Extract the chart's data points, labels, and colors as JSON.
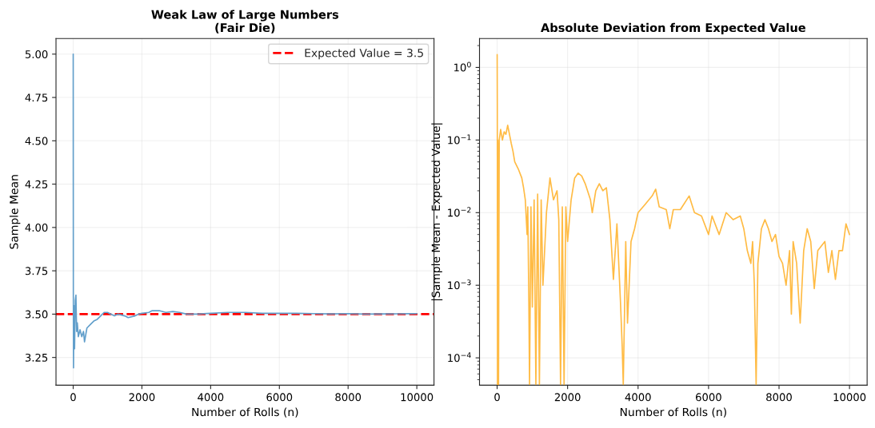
{
  "chart_data": [
    {
      "type": "line",
      "title": "Weak Law of Large Numbers\n(Fair Die)",
      "xlabel": "Number of Rolls (n)",
      "ylabel": "Sample Mean",
      "x": [
        1,
        5,
        10,
        20,
        40,
        60,
        80,
        100,
        120,
        150,
        200,
        250,
        300,
        330,
        400,
        500,
        600,
        700,
        800,
        900,
        1000,
        1100,
        1200,
        1300,
        1500,
        1600,
        1800,
        1900,
        2000,
        2200,
        2300,
        2500,
        2700,
        2900,
        3100,
        3300,
        3600,
        4000,
        4500,
        5000,
        5500,
        6000,
        6500,
        7000,
        7500,
        8000,
        8500,
        9000,
        9500,
        10000
      ],
      "series": [
        {
          "color": "#629fcb",
          "values": [
            5.0,
            3.6,
            3.19,
            3.55,
            3.3,
            3.58,
            3.61,
            3.4,
            3.45,
            3.37,
            3.41,
            3.37,
            3.4,
            3.34,
            3.42,
            3.44,
            3.46,
            3.47,
            3.49,
            3.51,
            3.51,
            3.5,
            3.49,
            3.5,
            3.49,
            3.48,
            3.49,
            3.5,
            3.505,
            3.51,
            3.52,
            3.52,
            3.51,
            3.515,
            3.51,
            3.5,
            3.5,
            3.505,
            3.51,
            3.51,
            3.505,
            3.505,
            3.505,
            3.503,
            3.501,
            3.503,
            3.5,
            3.501,
            3.502,
            3.503
          ]
        }
      ],
      "ref_lines": [
        {
          "axis": "y",
          "value": 3.5,
          "label": "Expected Value = 3.5",
          "color": "#ff0000",
          "line_style": "dashed"
        }
      ],
      "xlim": [
        -500,
        10500
      ],
      "ylim": [
        3.09,
        5.09
      ],
      "xticks": [
        0,
        2000,
        4000,
        6000,
        8000,
        10000
      ],
      "yticks": [
        {
          "value": 3.25,
          "label": "3.25"
        },
        {
          "value": 3.5,
          "label": "3.50"
        },
        {
          "value": 3.75,
          "label": "3.75"
        },
        {
          "value": 4.0,
          "label": "4.00"
        },
        {
          "value": 4.25,
          "label": "4.25"
        },
        {
          "value": 4.5,
          "label": "4.50"
        },
        {
          "value": 4.75,
          "label": "4.75"
        },
        {
          "value": 5.0,
          "label": "5.00"
        }
      ],
      "grid": true,
      "legend": "top right"
    },
    {
      "type": "line",
      "title": "Absolute Deviation from Expected Value",
      "xlabel": "Number of Rolls (n)",
      "ylabel": "|Sample Mean - Expected Value|",
      "x": [
        1,
        5,
        10,
        20,
        30,
        40,
        60,
        100,
        150,
        200,
        250,
        300,
        350,
        400,
        450,
        500,
        600,
        700,
        750,
        800,
        850,
        870,
        900,
        920,
        960,
        1000,
        1050,
        1100,
        1150,
        1200,
        1250,
        1300,
        1400,
        1500,
        1600,
        1700,
        1750,
        1800,
        1850,
        1900,
        1950,
        2000,
        2100,
        2200,
        2300,
        2400,
        2500,
        2650,
        2700,
        2800,
        2900,
        3000,
        3100,
        3200,
        3300,
        3400,
        3500,
        3550,
        3580,
        3650,
        3700,
        3800,
        3900,
        4000,
        4200,
        4400,
        4500,
        4600,
        4800,
        4900,
        5000,
        5200,
        5450,
        5600,
        5800,
        6000,
        6100,
        6300,
        6500,
        6700,
        6900,
        7000,
        7100,
        7200,
        7250,
        7300,
        7350,
        7400,
        7500,
        7600,
        7700,
        7800,
        7900,
        8000,
        8100,
        8200,
        8300,
        8350,
        8400,
        8500,
        8600,
        8700,
        8800,
        8900,
        9000,
        9100,
        9300,
        9400,
        9500,
        9600,
        9700,
        9800,
        9900,
        10000
      ],
      "series": [
        {
          "color": "#ffbb44",
          "values": [
            1.5,
            0.3,
            4.3e-05,
            0.1,
            0.05,
            4.3e-05,
            0.1,
            0.14,
            0.1,
            0.13,
            0.12,
            0.16,
            0.12,
            0.09,
            0.07,
            0.05,
            0.04,
            0.03,
            0.022,
            0.015,
            0.005,
            0.012,
            0.0006,
            4.3e-05,
            0.012,
            0.0005,
            0.015,
            4.3e-05,
            0.018,
            4.3e-05,
            0.015,
            0.001,
            0.01,
            0.03,
            0.015,
            0.02,
            0.008,
            4.3e-05,
            0.012,
            4.3e-05,
            0.012,
            0.004,
            0.015,
            0.03,
            0.035,
            0.032,
            0.025,
            0.015,
            0.01,
            0.02,
            0.025,
            0.02,
            0.022,
            0.008,
            0.0012,
            0.007,
            0.0006,
            0.00014,
            4.3e-05,
            0.004,
            0.0003,
            0.004,
            0.006,
            0.01,
            0.013,
            0.017,
            0.021,
            0.012,
            0.011,
            0.006,
            0.011,
            0.011,
            0.017,
            0.01,
            0.009,
            0.005,
            0.009,
            0.005,
            0.01,
            0.008,
            0.009,
            0.006,
            0.003,
            0.002,
            0.004,
            0.001,
            4.3e-05,
            0.002,
            0.006,
            0.008,
            0.006,
            0.004,
            0.005,
            0.0025,
            0.002,
            0.001,
            0.003,
            0.0004,
            0.004,
            0.002,
            0.0003,
            0.003,
            0.006,
            0.004,
            0.0009,
            0.003,
            0.004,
            0.0015,
            0.003,
            0.0012,
            0.003,
            0.003,
            0.007,
            0.005
          ]
        }
      ],
      "log": "y",
      "xlim": [
        -500,
        10500
      ],
      "ylim": [
        4.2e-05,
        2.5
      ],
      "xticks": [
        0,
        2000,
        4000,
        6000,
        8000,
        10000
      ],
      "yticks": [
        {
          "value": 0.0001,
          "label": "10$^{−4}$"
        },
        {
          "value": 0.001,
          "label": "10$^{−3}$"
        },
        {
          "value": 0.01,
          "label": "10$^{−2}$"
        },
        {
          "value": 0.1,
          "label": "10$^{−1}$"
        },
        {
          "value": 1,
          "label": "10$^{0}$"
        }
      ],
      "grid": true
    }
  ]
}
